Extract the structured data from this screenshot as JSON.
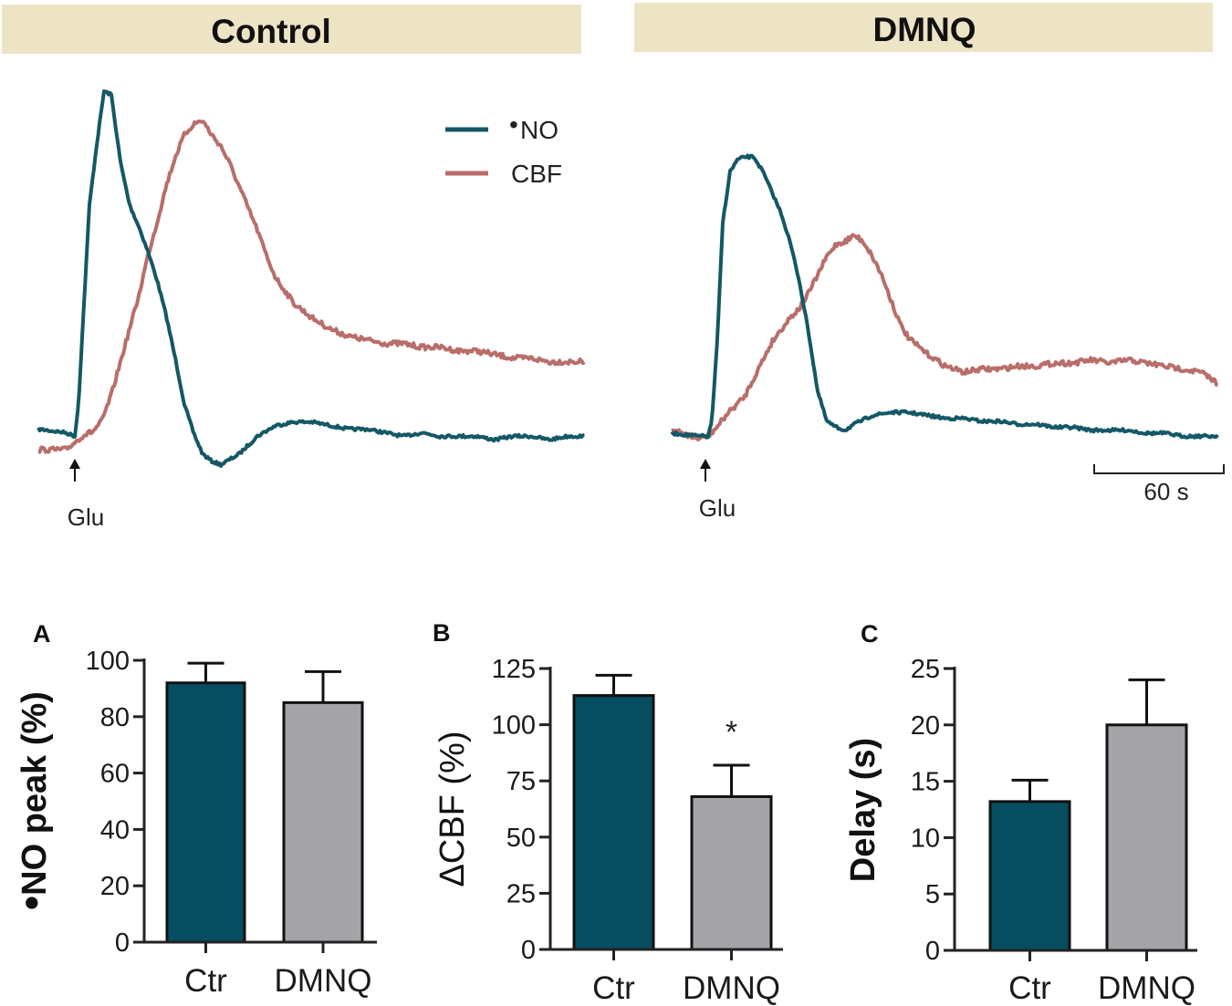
{
  "colors": {
    "no_trace": "#145866",
    "cbf_trace": "#b86e6a",
    "header_bg": "#ede4c5",
    "bar_ctr": "#064d61",
    "bar_dmnq": "#a4a3a8",
    "axis": "#222222"
  },
  "traces": {
    "headers": {
      "control": "Control",
      "dmnq": "DMNQ"
    },
    "legend": [
      {
        "key": "no",
        "bullet": "•",
        "label": "NO"
      },
      {
        "key": "cbf",
        "label": "CBF"
      }
    ],
    "stimulus_label": "Glu",
    "scale_bar_label": "60 s"
  },
  "chart_data": [
    {
      "type": "line",
      "title": "Control",
      "x_unit": "s",
      "stimulus": {
        "label": "Glu",
        "time": 0
      },
      "series": [
        {
          "name": "NO",
          "t": [
            -20,
            -5,
            0,
            2,
            5,
            8,
            12,
            16,
            20,
            25,
            30,
            35,
            40,
            45,
            50,
            55,
            60,
            65,
            70,
            75,
            80,
            90,
            100,
            110,
            120,
            130,
            140,
            150,
            160,
            170,
            180,
            190,
            200,
            210,
            220,
            230,
            240,
            250,
            260,
            270,
            280
          ],
          "values": [
            5,
            4,
            3,
            12,
            40,
            68,
            85,
            100,
            99,
            80,
            68,
            62,
            55,
            47,
            37,
            25,
            12,
            4,
            -2,
            -4,
            -5,
            -2,
            3,
            6,
            7,
            7,
            6,
            5,
            5,
            4,
            3,
            4,
            3,
            3,
            3,
            2,
            3,
            3,
            2,
            3,
            3
          ]
        },
        {
          "name": "CBF",
          "t": [
            -20,
            -5,
            0,
            5,
            10,
            15,
            20,
            25,
            30,
            35,
            40,
            45,
            50,
            55,
            60,
            65,
            70,
            75,
            80,
            85,
            90,
            95,
            100,
            105,
            110,
            120,
            130,
            140,
            150,
            160,
            170,
            180,
            190,
            200,
            210,
            220,
            230,
            240,
            250,
            260,
            270,
            280
          ],
          "values": [
            0,
            0,
            2,
            4,
            5,
            8,
            15,
            24,
            33,
            42,
            53,
            62,
            72,
            80,
            86,
            89,
            90,
            86,
            83,
            78,
            72,
            66,
            60,
            53,
            47,
            40,
            36,
            33,
            31,
            30,
            29,
            29,
            28,
            28,
            27,
            27,
            26,
            25,
            25,
            24,
            24,
            24
          ]
        }
      ]
    },
    {
      "type": "line",
      "title": "DMNQ",
      "x_unit": "s",
      "stimulus": {
        "label": "Glu",
        "time": 0
      },
      "series": [
        {
          "name": "NO",
          "t": [
            -20,
            -5,
            0,
            2,
            5,
            8,
            12,
            16,
            20,
            25,
            30,
            35,
            40,
            45,
            50,
            55,
            60,
            65,
            70,
            75,
            80,
            90,
            100,
            110,
            120,
            130,
            140,
            150,
            160,
            170,
            180,
            190,
            200,
            210,
            220,
            230,
            240,
            250,
            260,
            270,
            280
          ],
          "values": [
            4,
            3,
            3,
            8,
            35,
            75,
            92,
            96,
            97,
            97,
            92,
            85,
            78,
            68,
            55,
            38,
            18,
            8,
            6,
            5,
            7,
            10,
            11,
            11,
            10,
            9,
            9,
            8,
            8,
            7,
            7,
            6,
            6,
            5,
            5,
            5,
            4,
            4,
            3,
            3,
            3
          ]
        },
        {
          "name": "CBF",
          "t": [
            -20,
            -5,
            0,
            5,
            10,
            15,
            20,
            25,
            30,
            35,
            40,
            45,
            50,
            55,
            60,
            65,
            70,
            75,
            80,
            85,
            90,
            95,
            100,
            105,
            110,
            120,
            130,
            140,
            150,
            160,
            170,
            180,
            190,
            200,
            210,
            220,
            230,
            240,
            250,
            260,
            270,
            280
          ],
          "values": [
            5,
            2,
            3,
            6,
            10,
            13,
            16,
            22,
            28,
            34,
            38,
            42,
            45,
            50,
            56,
            62,
            66,
            67,
            69,
            67,
            62,
            56,
            48,
            40,
            35,
            30,
            26,
            24,
            25,
            25,
            26,
            26,
            27,
            27,
            28,
            27,
            28,
            27,
            26,
            25,
            24,
            20
          ]
        }
      ],
      "scale_bar": {
        "label": "60 s",
        "duration": 60
      }
    },
    {
      "type": "bar",
      "panel": "A",
      "categories": [
        "Ctr",
        "DMNQ"
      ],
      "values": [
        92,
        85
      ],
      "errors": [
        7,
        11
      ],
      "ylabel": {
        "bullet": "•",
        "text": "NO peak (%)"
      },
      "ylim": [
        0,
        100
      ],
      "yticks": [
        0,
        20,
        40,
        60,
        80,
        100
      ],
      "significance": [
        "",
        ""
      ]
    },
    {
      "type": "bar",
      "panel": "B",
      "categories": [
        "Ctr",
        "DMNQ"
      ],
      "values": [
        113,
        68
      ],
      "errors": [
        9,
        14
      ],
      "ylabel": {
        "symbol": "Δ",
        "text": "CBF (%)"
      },
      "ylim": [
        0,
        125
      ],
      "yticks": [
        0,
        25,
        50,
        75,
        100,
        125
      ],
      "significance": [
        "",
        "*"
      ]
    },
    {
      "type": "bar",
      "panel": "C",
      "categories": [
        "Ctr",
        "DMNQ"
      ],
      "values": [
        13.2,
        20
      ],
      "errors": [
        1.9,
        4
      ],
      "ylabel": {
        "text": "Delay (s)"
      },
      "ylim": [
        0,
        25
      ],
      "yticks": [
        0,
        5,
        10,
        15,
        20,
        25
      ],
      "significance": [
        "",
        ""
      ]
    }
  ]
}
